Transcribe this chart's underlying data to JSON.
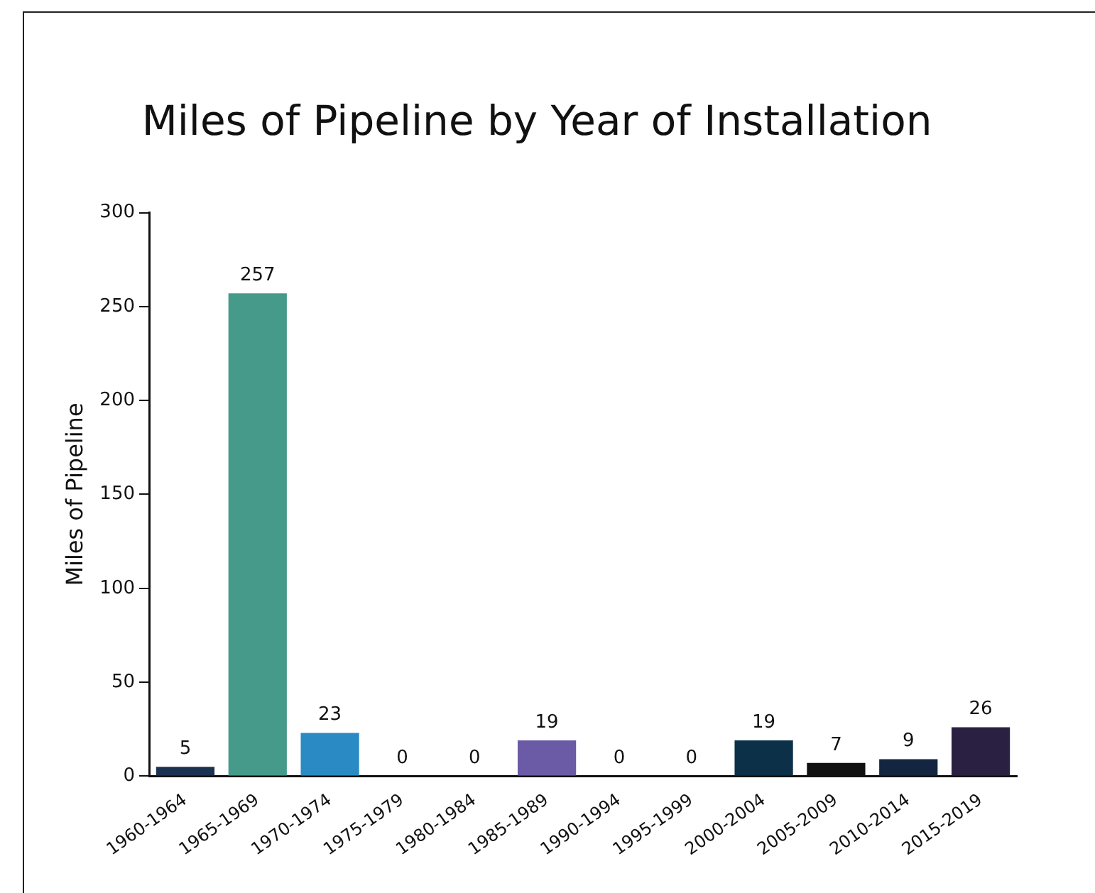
{
  "chart_data": {
    "type": "bar",
    "title": "Miles of Pipeline by Year of Installation",
    "ylabel": "Miles of Pipeline",
    "categories": [
      "1960-1964",
      "1965-1969",
      "1970-1974",
      "1975-1979",
      "1980-1984",
      "1985-1989",
      "1990-1994",
      "1995-1999",
      "2000-2004",
      "2005-2009",
      "2010-2014",
      "2015-2019"
    ],
    "values": [
      5,
      257,
      23,
      0,
      0,
      19,
      0,
      0,
      19,
      7,
      9,
      26
    ],
    "colors": [
      "#1b3350",
      "#459a8a",
      "#2a8bc4",
      "#1b3350",
      "#1b3350",
      "#6b5aa6",
      "#1b3350",
      "#1b3350",
      "#0d3049",
      "#111111",
      "#132540",
      "#2a2142"
    ],
    "ylim": [
      0,
      300
    ],
    "yticks": [
      0,
      50,
      100,
      150,
      200,
      250,
      300
    ],
    "grid": false,
    "legend": false,
    "data_labels": true
  }
}
